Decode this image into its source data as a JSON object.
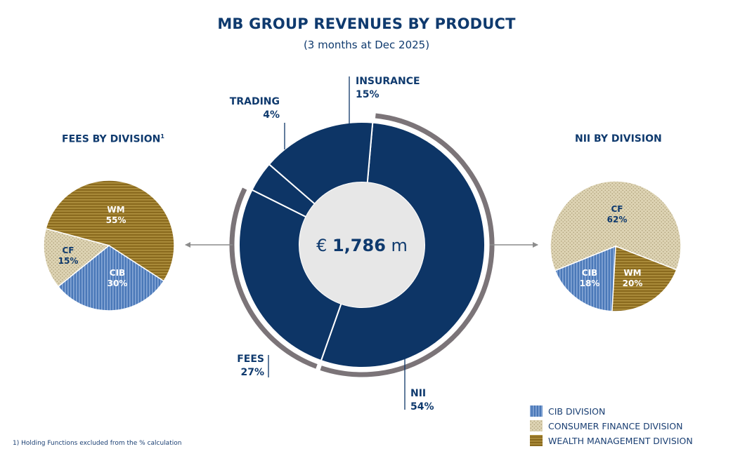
{
  "header": {
    "title": "MB GROUP REVENUES BY PRODUCT",
    "subtitle": "(3 months at Dec 2025)"
  },
  "colors": {
    "navy": "#0d3566",
    "ring": "#7b7478",
    "center": "#e7e7e7",
    "cib": "#4a78b8",
    "cf": "#dcd0ae",
    "wm": "#8a6a1e"
  },
  "chart_data": [
    {
      "type": "pie",
      "subtype": "donut",
      "title": "MB GROUP REVENUES BY PRODUCT",
      "subtitle": "(3 months at Dec 2025)",
      "center_label": {
        "prefix": "€",
        "value": "1,786",
        "unit": "m"
      },
      "slices": [
        {
          "label": "NII",
          "value": 54,
          "display": "54%"
        },
        {
          "label": "FEES",
          "value": 27,
          "display": "27%"
        },
        {
          "label": "TRADING",
          "value": 4,
          "display": "4%"
        },
        {
          "label": "INSURANCE",
          "value": 15,
          "display": "15%"
        }
      ]
    },
    {
      "type": "pie",
      "title": "FEES BY DIVISION",
      "title_sup": "1",
      "slices": [
        {
          "label": "WM",
          "value": 55,
          "display": "55%",
          "division": "wm"
        },
        {
          "label": "CIB",
          "value": 30,
          "display": "30%",
          "division": "cib"
        },
        {
          "label": "CF",
          "value": 15,
          "display": "15%",
          "division": "cf"
        }
      ]
    },
    {
      "type": "pie",
      "title": "NII BY DIVISION",
      "slices": [
        {
          "label": "CF",
          "value": 62,
          "display": "62%",
          "division": "cf"
        },
        {
          "label": "WM",
          "value": 20,
          "display": "20%",
          "division": "wm"
        },
        {
          "label": "CIB",
          "value": 18,
          "display": "18%",
          "division": "cib"
        }
      ]
    }
  ],
  "legend": [
    {
      "key": "cib",
      "label": "CIB DIVISION"
    },
    {
      "key": "cf",
      "label": "CONSUMER FINANCE DIVISION"
    },
    {
      "key": "wm",
      "label": "WEALTH MANAGEMENT DIVISION"
    }
  ],
  "footnote": "1) Holding Functions excluded from the % calculation"
}
